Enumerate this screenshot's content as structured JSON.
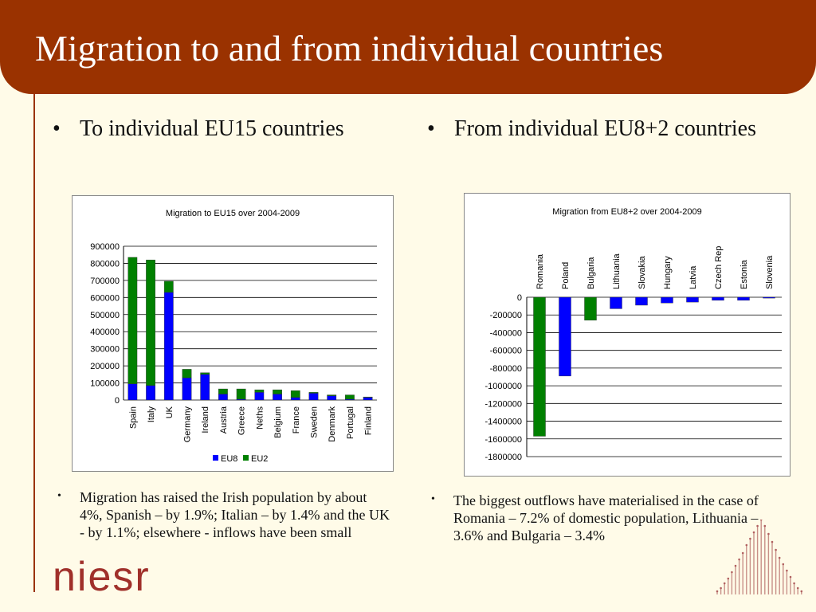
{
  "slide": {
    "title": "Migration to and from individual countries",
    "accent_color": "#9a3200",
    "background_color": "#fffbe8"
  },
  "left": {
    "bullet": "•",
    "heading": "To individual EU15 countries",
    "note": "Migration has raised the Irish population by about 4%, Spanish – by 1.9%; Italian – by 1.4% and the UK - by 1.1%; elsewhere - inflows have been small"
  },
  "right": {
    "bullet": "•",
    "heading": "From individual EU8+2 countries",
    "note": "The biggest outflows have materialised in the case of Romania – 7.2% of domestic population, Lithuania – 3.6% and Bulgaria – 3.4%"
  },
  "logo": {
    "text": "niesr"
  },
  "chart_data": [
    {
      "type": "bar",
      "stacked": true,
      "title": "Migration to EU15 over 2004-2009",
      "categories": [
        "Spain",
        "Italy",
        "UK",
        "Germany",
        "Ireland",
        "Austria",
        "Greece",
        "Neths",
        "Belgium",
        "France",
        "Sweden",
        "Denmark",
        "Portugal",
        "Finland"
      ],
      "series": [
        {
          "name": "EU8",
          "color": "#0000ff",
          "values": [
            95000,
            85000,
            630000,
            130000,
            150000,
            35000,
            5000,
            45000,
            35000,
            15000,
            40000,
            25000,
            5000,
            15000
          ]
        },
        {
          "name": "EU2",
          "color": "#008000",
          "values": [
            740000,
            735000,
            65000,
            50000,
            10000,
            30000,
            60000,
            15000,
            25000,
            40000,
            5000,
            5000,
            25000,
            3000
          ]
        }
      ],
      "ylim": [
        0,
        900000
      ],
      "yticks": [
        0,
        100000,
        200000,
        300000,
        400000,
        500000,
        600000,
        700000,
        800000,
        900000
      ],
      "grid": true,
      "legend": "bottom"
    },
    {
      "type": "bar",
      "title": "Migration from EU8+2 over 2004-2009",
      "categories": [
        "Romania",
        "Poland",
        "Bulgaria",
        "Lithuania",
        "Slovakia",
        "Hungary",
        "Latvia",
        "Czech Rep",
        "Estonia",
        "Slovenia"
      ],
      "values": [
        -1570000,
        -890000,
        -260000,
        -130000,
        -90000,
        -65000,
        -55000,
        -35000,
        -35000,
        -10000
      ],
      "colors": [
        "#008000",
        "#0000ff",
        "#008000",
        "#0000ff",
        "#0000ff",
        "#0000ff",
        "#0000ff",
        "#0000ff",
        "#0000ff",
        "#0000ff"
      ],
      "ylim": [
        -1800000,
        0
      ],
      "yticks": [
        0,
        -200000,
        -400000,
        -600000,
        -800000,
        -1000000,
        -1200000,
        -1400000,
        -1600000,
        -1800000
      ],
      "grid": true
    }
  ]
}
